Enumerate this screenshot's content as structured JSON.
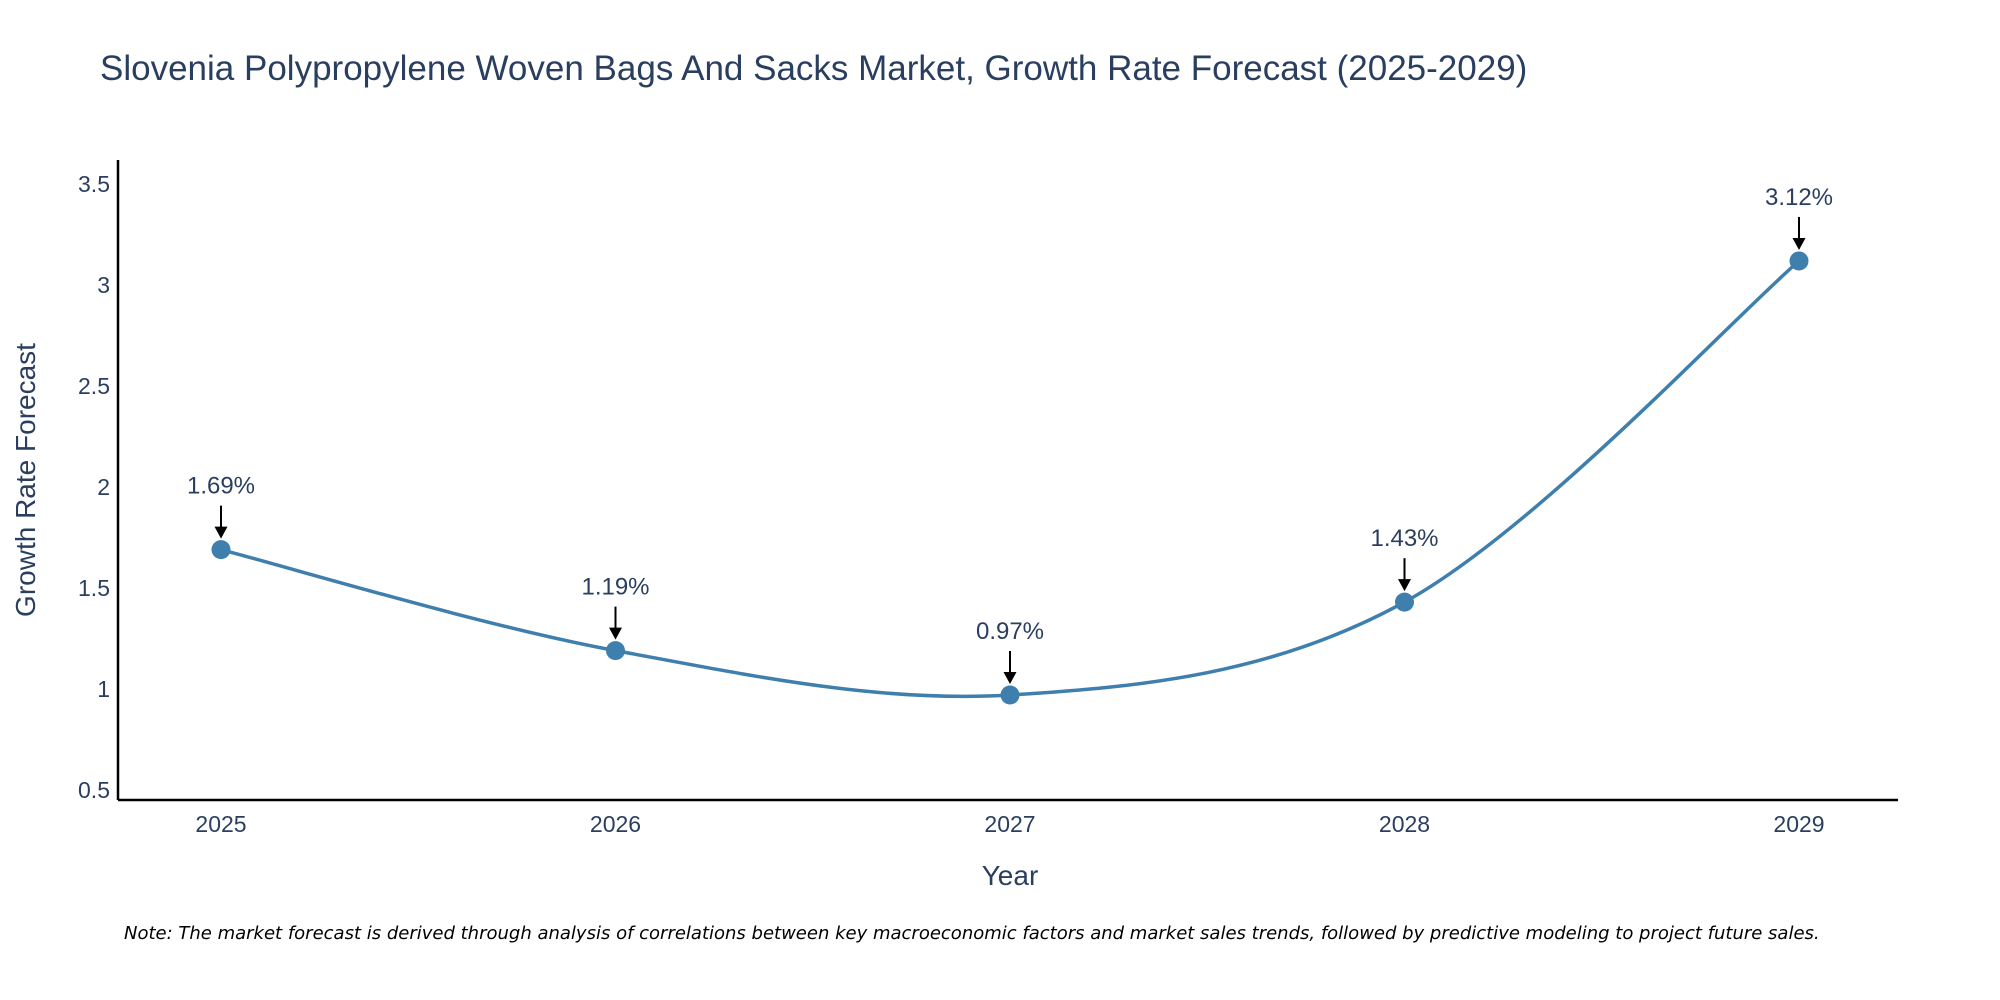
{
  "chart_data": {
    "type": "line",
    "title": "Slovenia Polypropylene Woven Bags And Sacks Market, Growth Rate Forecast (2025-2029)",
    "xlabel": "Year",
    "ylabel": "Growth Rate Forecast",
    "categories": [
      "2025",
      "2026",
      "2027",
      "2028",
      "2029"
    ],
    "values": [
      1.69,
      1.19,
      0.97,
      1.43,
      3.12
    ],
    "data_labels": [
      "1.69%",
      "1.19%",
      "0.97%",
      "1.43%",
      "3.12%"
    ],
    "y_ticks": [
      0.5,
      1,
      1.5,
      2,
      2.5,
      3,
      3.5
    ],
    "y_tick_labels": [
      "0.5",
      "1",
      "1.5",
      "2",
      "2.5",
      "3",
      "3.5"
    ],
    "ylim": [
      0.45,
      3.62
    ],
    "grid": false,
    "line_shape": "spline",
    "series_color": "#3f7fad",
    "marker_color": "#3f7fad",
    "arrow_color": "#000000",
    "axis_color": "#000000",
    "text_color": "#2a3f5f"
  },
  "note": "Note: The market forecast is derived through analysis of correlations between key macroeconomic factors and market sales trends, followed by predictive modeling to project future sales."
}
